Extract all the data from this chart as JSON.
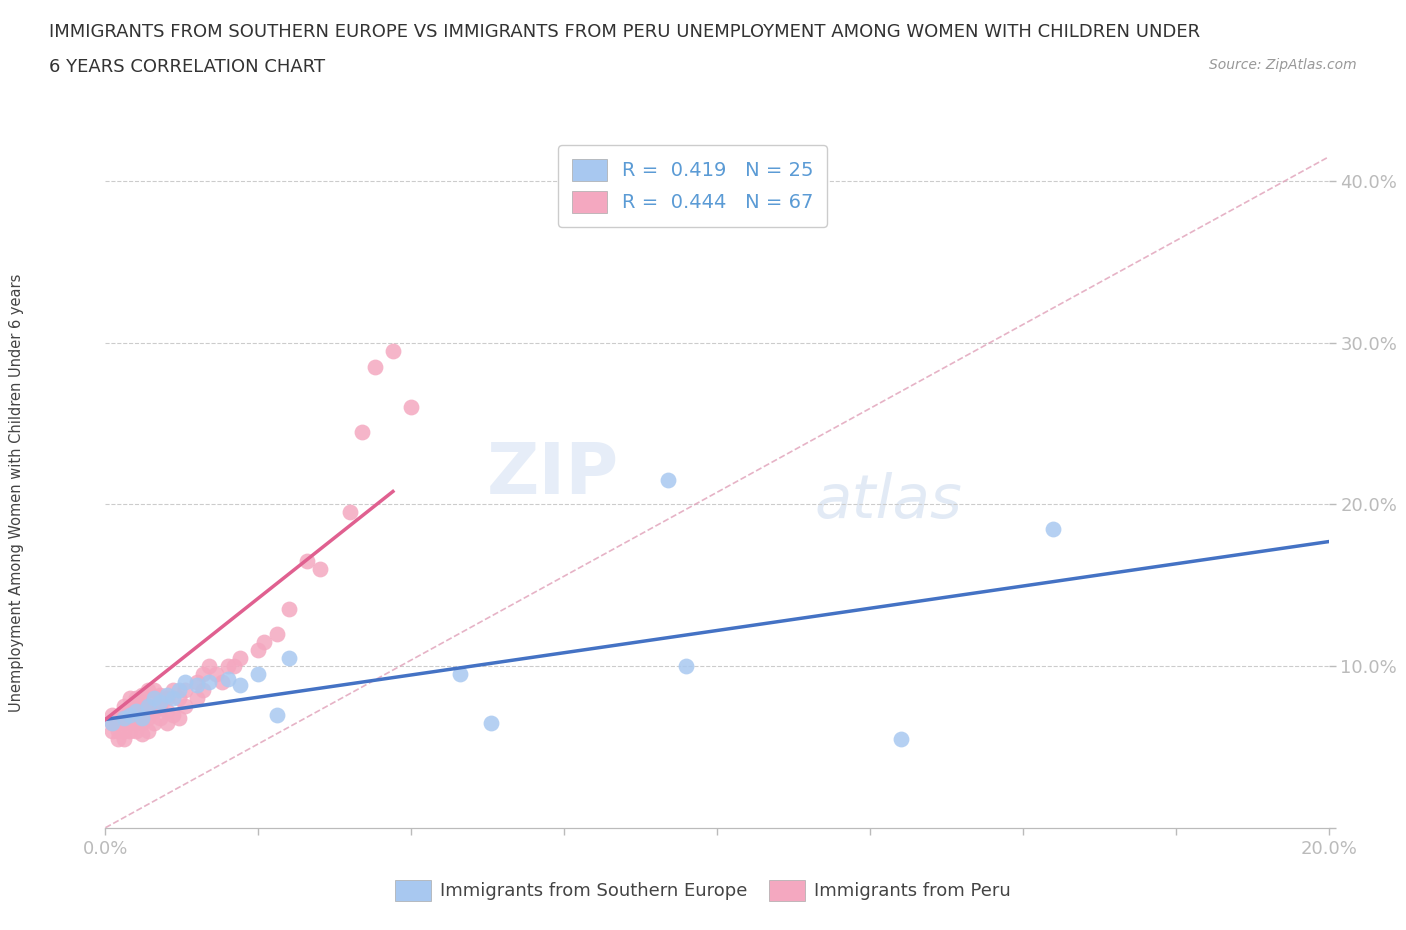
{
  "title_line1": "IMMIGRANTS FROM SOUTHERN EUROPE VS IMMIGRANTS FROM PERU UNEMPLOYMENT AMONG WOMEN WITH CHILDREN UNDER",
  "title_line2": "6 YEARS CORRELATION CHART",
  "source": "Source: ZipAtlas.com",
  "ylabel_label": "Unemployment Among Women with Children Under 6 years",
  "xlim": [
    0.0,
    0.2
  ],
  "ylim": [
    0.0,
    0.42
  ],
  "x_ticks": [
    0.0,
    0.025,
    0.05,
    0.075,
    0.1,
    0.125,
    0.15,
    0.175,
    0.2
  ],
  "y_ticks": [
    0.0,
    0.1,
    0.2,
    0.3,
    0.4
  ],
  "r_blue": 0.419,
  "n_blue": 25,
  "r_pink": 0.444,
  "n_pink": 67,
  "blue_color": "#a8c8f0",
  "pink_color": "#f4a8c0",
  "blue_line_color": "#4472c4",
  "pink_line_color": "#e06090",
  "pink_dashed_color": "#e0a0b8",
  "blue_x": [
    0.001,
    0.003,
    0.004,
    0.005,
    0.006,
    0.007,
    0.008,
    0.009,
    0.01,
    0.011,
    0.012,
    0.013,
    0.015,
    0.017,
    0.02,
    0.022,
    0.025,
    0.028,
    0.03,
    0.058,
    0.063,
    0.092,
    0.095,
    0.13,
    0.155
  ],
  "blue_y": [
    0.065,
    0.068,
    0.07,
    0.072,
    0.068,
    0.075,
    0.08,
    0.078,
    0.082,
    0.08,
    0.085,
    0.09,
    0.088,
    0.09,
    0.092,
    0.088,
    0.095,
    0.07,
    0.105,
    0.095,
    0.065,
    0.215,
    0.1,
    0.055,
    0.185
  ],
  "pink_x": [
    0.001,
    0.001,
    0.001,
    0.002,
    0.002,
    0.002,
    0.002,
    0.003,
    0.003,
    0.003,
    0.003,
    0.003,
    0.004,
    0.004,
    0.004,
    0.004,
    0.005,
    0.005,
    0.005,
    0.005,
    0.005,
    0.006,
    0.006,
    0.006,
    0.006,
    0.006,
    0.007,
    0.007,
    0.007,
    0.007,
    0.008,
    0.008,
    0.008,
    0.008,
    0.009,
    0.009,
    0.009,
    0.01,
    0.01,
    0.01,
    0.011,
    0.011,
    0.012,
    0.012,
    0.013,
    0.013,
    0.015,
    0.015,
    0.016,
    0.016,
    0.017,
    0.018,
    0.019,
    0.02,
    0.021,
    0.022,
    0.025,
    0.026,
    0.028,
    0.03,
    0.033,
    0.035,
    0.04,
    0.042,
    0.044,
    0.047,
    0.05
  ],
  "pink_y": [
    0.06,
    0.065,
    0.07,
    0.055,
    0.06,
    0.065,
    0.068,
    0.055,
    0.06,
    0.065,
    0.07,
    0.075,
    0.06,
    0.068,
    0.072,
    0.08,
    0.06,
    0.065,
    0.07,
    0.075,
    0.08,
    0.058,
    0.065,
    0.07,
    0.078,
    0.082,
    0.06,
    0.068,
    0.075,
    0.085,
    0.065,
    0.072,
    0.078,
    0.085,
    0.068,
    0.075,
    0.082,
    0.065,
    0.072,
    0.08,
    0.07,
    0.085,
    0.068,
    0.08,
    0.075,
    0.085,
    0.08,
    0.09,
    0.085,
    0.095,
    0.1,
    0.095,
    0.09,
    0.1,
    0.1,
    0.105,
    0.11,
    0.115,
    0.12,
    0.135,
    0.165,
    0.16,
    0.195,
    0.245,
    0.285,
    0.295,
    0.26
  ]
}
